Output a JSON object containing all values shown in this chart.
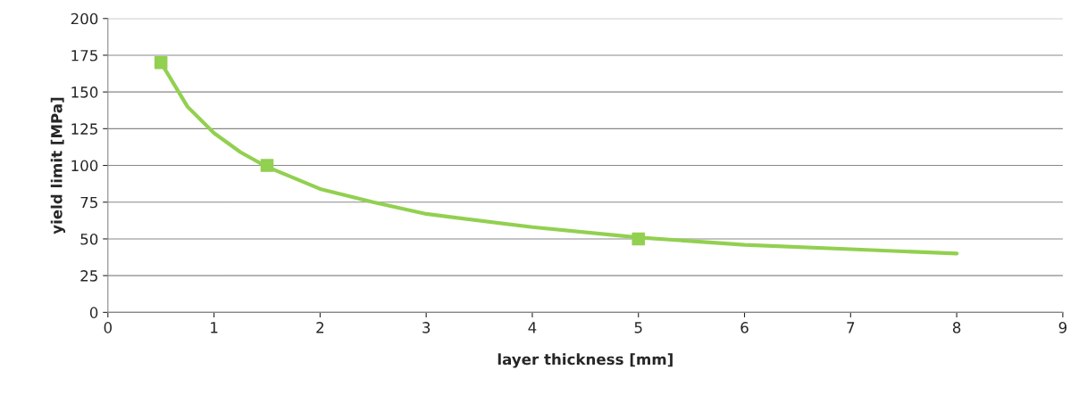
{
  "chart_data": {
    "type": "scatter",
    "xlabel": "layer thickness [mm]",
    "ylabel": "yield limit [MPa]",
    "xlim": [
      0,
      9
    ],
    "xticks": [
      0,
      1,
      2,
      3,
      4,
      5,
      6,
      7,
      8,
      9
    ],
    "ylim": [
      0,
      200
    ],
    "yticks": [
      0,
      25,
      50,
      75,
      100,
      125,
      150,
      175,
      200
    ],
    "grid": "y",
    "series": [
      {
        "color": "#92d050",
        "marker": "square",
        "x": [
          0.5,
          1.5,
          5
        ],
        "values": [
          170,
          100,
          50
        ]
      },
      {
        "type": "line",
        "color": "#92d050",
        "marker": "none",
        "line_style": "solid",
        "x": [
          0.5,
          0.75,
          1,
          1.25,
          1.5,
          2,
          2.5,
          3,
          4,
          5,
          6,
          7,
          8
        ],
        "values": [
          170,
          140,
          122,
          109,
          99,
          84,
          75,
          67,
          58,
          51,
          46,
          43,
          40
        ]
      }
    ]
  }
}
